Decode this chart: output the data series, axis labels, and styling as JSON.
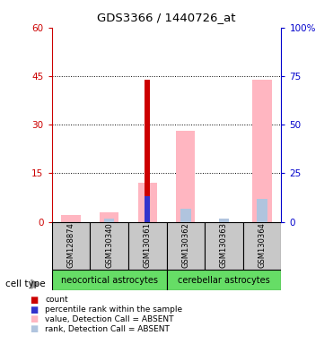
{
  "title": "GDS3366 / 1440726_at",
  "samples": [
    "GSM128874",
    "GSM130340",
    "GSM130361",
    "GSM130362",
    "GSM130363",
    "GSM130364"
  ],
  "bar_width": 0.5,
  "ylim_left": [
    0,
    60
  ],
  "ylim_right": [
    0,
    100
  ],
  "yticks_left": [
    0,
    15,
    30,
    45,
    60
  ],
  "ytick_labels_left": [
    "0",
    "15",
    "30",
    "45",
    "60"
  ],
  "yticks_right": [
    0,
    25,
    50,
    75,
    100
  ],
  "ytick_labels_right": [
    "0",
    "25",
    "50",
    "75",
    "100%"
  ],
  "count_values": [
    0,
    0,
    44,
    0,
    0,
    0
  ],
  "percentile_values": [
    0,
    0,
    8,
    0,
    0,
    0
  ],
  "value_absent": [
    2,
    3,
    12,
    28,
    0,
    44
  ],
  "rank_absent": [
    0,
    1,
    0,
    4,
    1,
    7
  ],
  "color_count": "#cc0000",
  "color_percentile": "#3333cc",
  "color_value_absent": "#ffb6c1",
  "color_rank_absent": "#b0c4de",
  "left_axis_color": "#cc0000",
  "right_axis_color": "#0000cc",
  "group1_label": "neocortical astrocytes",
  "group2_label": "cerebellar astrocytes",
  "group_color": "#66dd66",
  "sample_box_color": "#c8c8c8",
  "legend_items": [
    {
      "label": "count",
      "color": "#cc0000"
    },
    {
      "label": "percentile rank within the sample",
      "color": "#3333cc"
    },
    {
      "label": "value, Detection Call = ABSENT",
      "color": "#ffb6c1"
    },
    {
      "label": "rank, Detection Call = ABSENT",
      "color": "#b0c4de"
    }
  ],
  "cell_type_label": "cell type"
}
